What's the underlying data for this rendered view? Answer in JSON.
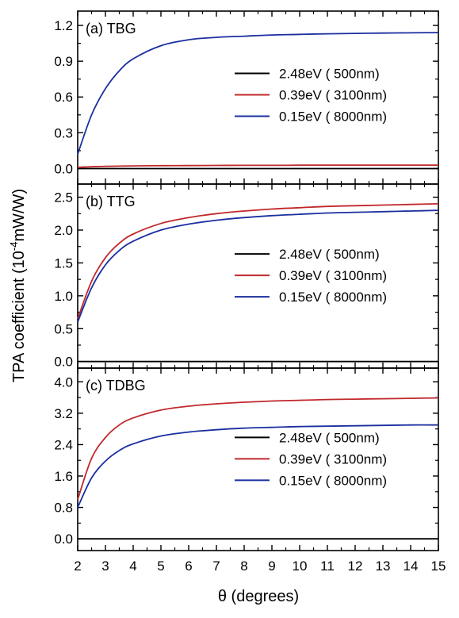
{
  "figure": {
    "ylabel_main": "TPA coefficient (10",
    "ylabel_exp": "-4",
    "ylabel_unit": "mW/W)",
    "xlabel": "θ  (degrees)"
  },
  "chart_data": [
    {
      "type": "line",
      "title": "(a) TBG",
      "xlabel": "θ  (degrees)",
      "ylabel": "TPA coefficient (10-4mW/W)",
      "xlim": [
        2,
        15
      ],
      "ylim": [
        -0.13,
        1.32
      ],
      "xticks": [
        "2",
        "3",
        "4",
        "5",
        "6",
        "7",
        "8",
        "9",
        "10",
        "11",
        "12",
        "13",
        "14",
        "15"
      ],
      "yticks": [
        "0.0",
        "0.3",
        "0.6",
        "0.9",
        "1.2"
      ],
      "legend": "center-right",
      "x": [
        2,
        2.5,
        3,
        3.5,
        4,
        5,
        6,
        7,
        8,
        9,
        10,
        11,
        12,
        13,
        14,
        15
      ],
      "series": [
        {
          "name": "2.48eV ( 500nm)",
          "color": "#000000",
          "values": [
            0.0,
            0.0,
            0.0,
            0.0,
            0.0,
            0.0,
            0.0,
            0.0,
            0.0,
            0.0,
            0.0,
            0.0,
            0.0,
            0.0,
            0.0,
            0.0
          ]
        },
        {
          "name": "0.39eV ( 3100nm)",
          "color": "#c0282c",
          "values": [
            0.01,
            0.015,
            0.018,
            0.02,
            0.022,
            0.024,
            0.025,
            0.026,
            0.027,
            0.027,
            0.028,
            0.028,
            0.028,
            0.028,
            0.028,
            0.028
          ]
        },
        {
          "name": "0.15eV ( 8000nm)",
          "color": "#1a2fa0",
          "values": [
            0.12,
            0.45,
            0.67,
            0.82,
            0.92,
            1.03,
            1.08,
            1.1,
            1.11,
            1.12,
            1.125,
            1.13,
            1.133,
            1.136,
            1.138,
            1.14
          ]
        }
      ]
    },
    {
      "type": "line",
      "title": "(b) TTG",
      "xlim": [
        2,
        15
      ],
      "ylim": [
        -0.1,
        2.7
      ],
      "yticks": [
        "0.0",
        "0.5",
        "1.0",
        "1.5",
        "2.0",
        "2.5"
      ],
      "legend": "center-right",
      "x": [
        2,
        2.5,
        3,
        3.5,
        4,
        5,
        6,
        7,
        8,
        9,
        10,
        11,
        12,
        13,
        14,
        15
      ],
      "series": [
        {
          "name": "2.48eV ( 500nm)",
          "color": "#000000",
          "values": [
            0.0,
            0.0,
            0.0,
            0.0,
            0.0,
            0.0,
            0.0,
            0.0,
            0.0,
            0.0,
            0.0,
            0.0,
            0.0,
            0.0,
            0.0,
            0.0
          ]
        },
        {
          "name": "0.39eV ( 3100nm)",
          "color": "#c0282c",
          "values": [
            0.65,
            1.22,
            1.58,
            1.8,
            1.94,
            2.1,
            2.19,
            2.25,
            2.29,
            2.32,
            2.34,
            2.36,
            2.37,
            2.38,
            2.39,
            2.4
          ]
        },
        {
          "name": "0.15eV ( 8000nm)",
          "color": "#1a2fa0",
          "values": [
            0.6,
            1.12,
            1.47,
            1.69,
            1.83,
            2.0,
            2.09,
            2.15,
            2.19,
            2.22,
            2.24,
            2.26,
            2.27,
            2.28,
            2.29,
            2.3
          ]
        }
      ]
    },
    {
      "type": "line",
      "title": "(c) TDBG",
      "xlim": [
        2,
        15
      ],
      "ylim": [
        -0.3,
        4.35
      ],
      "yticks": [
        "0.0",
        "0.8",
        "1.6",
        "2.4",
        "3.2",
        "4.0"
      ],
      "legend": "center-right",
      "x": [
        2,
        2.5,
        3,
        3.5,
        4,
        5,
        6,
        7,
        8,
        9,
        10,
        11,
        12,
        13,
        14,
        15
      ],
      "series": [
        {
          "name": "2.48eV ( 500nm)",
          "color": "#000000",
          "values": [
            0.0,
            0.0,
            0.0,
            0.0,
            0.0,
            0.0,
            0.0,
            0.0,
            0.0,
            0.0,
            0.0,
            0.0,
            0.0,
            0.0,
            0.0,
            0.0
          ]
        },
        {
          "name": "0.39eV ( 3100nm)",
          "color": "#c0282c",
          "values": [
            1.0,
            2.05,
            2.58,
            2.9,
            3.08,
            3.28,
            3.38,
            3.44,
            3.48,
            3.51,
            3.53,
            3.55,
            3.56,
            3.57,
            3.58,
            3.59
          ]
        },
        {
          "name": "0.15eV ( 8000nm)",
          "color": "#1a2fa0",
          "values": [
            0.8,
            1.55,
            1.98,
            2.25,
            2.42,
            2.62,
            2.72,
            2.78,
            2.82,
            2.84,
            2.86,
            2.87,
            2.88,
            2.89,
            2.9,
            2.9
          ]
        }
      ]
    }
  ]
}
